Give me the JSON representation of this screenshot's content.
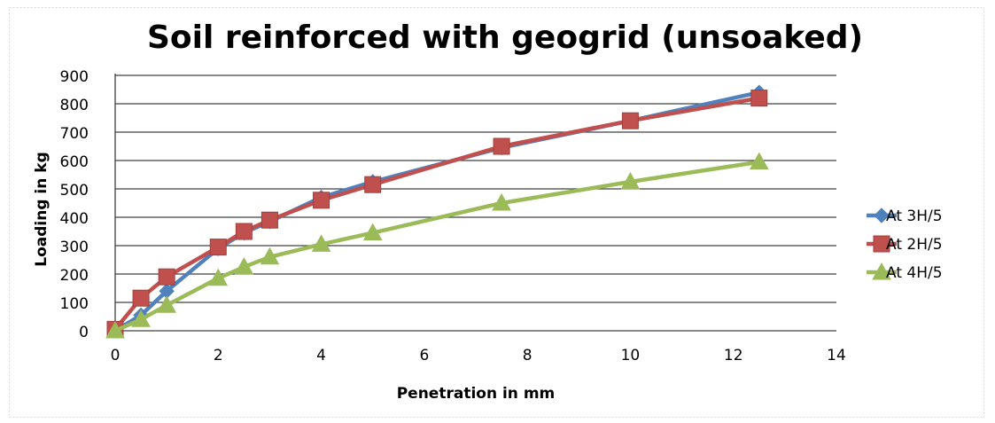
{
  "chart_data": {
    "type": "line",
    "title": "Soil reinforced with geogrid (unsoaked)",
    "xlabel": "Penetration in mm",
    "ylabel": "Loading in kg",
    "xlim": [
      0,
      14
    ],
    "ylim": [
      0,
      900
    ],
    "xticks": [
      "0",
      "2",
      "4",
      "6",
      "8",
      "10",
      "12",
      "14"
    ],
    "yticks": [
      "0",
      "100",
      "200",
      "300",
      "400",
      "500",
      "600",
      "700",
      "800",
      "900"
    ],
    "grid": "horizontal",
    "legend_position": "right",
    "series": [
      {
        "name": "At 3H/5",
        "color": "#4F81BD",
        "marker": "diamond",
        "x": [
          0,
          0.5,
          1,
          2,
          2.5,
          3,
          4,
          5,
          7.5,
          10,
          12.5
        ],
        "y": [
          0,
          55,
          140,
          290,
          345,
          385,
          470,
          525,
          645,
          740,
          840
        ]
      },
      {
        "name": "At 2H/5",
        "color": "#C0504D",
        "marker": "square",
        "x": [
          0,
          0.5,
          1,
          2,
          2.5,
          3,
          4,
          5,
          7.5,
          10,
          12.5
        ],
        "y": [
          5,
          115,
          190,
          295,
          350,
          390,
          460,
          515,
          650,
          740,
          820
        ]
      },
      {
        "name": "At 4H/5",
        "color": "#9BBB59",
        "marker": "triangle",
        "x": [
          0,
          0.5,
          1,
          2,
          2.5,
          3,
          4,
          5,
          7.5,
          10,
          12.5
        ],
        "y": [
          0,
          40,
          90,
          185,
          225,
          260,
          305,
          345,
          450,
          525,
          595
        ]
      }
    ]
  }
}
